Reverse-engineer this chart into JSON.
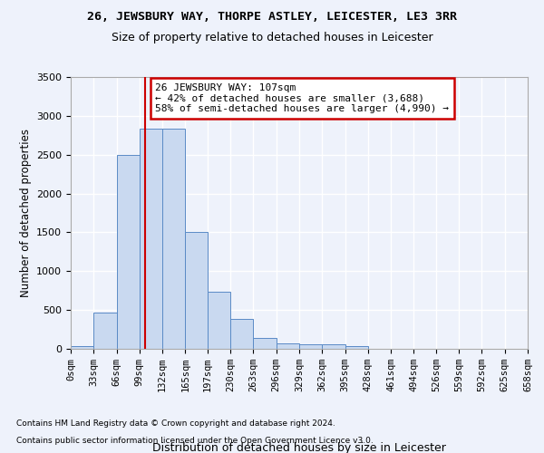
{
  "title1": "26, JEWSBURY WAY, THORPE ASTLEY, LEICESTER, LE3 3RR",
  "title2": "Size of property relative to detached houses in Leicester",
  "xlabel": "Distribution of detached houses by size in Leicester",
  "ylabel": "Number of detached properties",
  "bin_labels": [
    "0sqm",
    "33sqm",
    "66sqm",
    "99sqm",
    "132sqm",
    "165sqm",
    "197sqm",
    "230sqm",
    "263sqm",
    "296sqm",
    "329sqm",
    "362sqm",
    "395sqm",
    "428sqm",
    "461sqm",
    "494sqm",
    "526sqm",
    "559sqm",
    "592sqm",
    "625sqm",
    "658sqm"
  ],
  "bin_edges": [
    0,
    33,
    66,
    99,
    132,
    165,
    197,
    230,
    263,
    296,
    329,
    362,
    395,
    428,
    461,
    494,
    526,
    559,
    592,
    625,
    658
  ],
  "bar_values": [
    30,
    470,
    2500,
    2830,
    2830,
    1510,
    740,
    390,
    145,
    75,
    55,
    55,
    30,
    0,
    0,
    0,
    0,
    0,
    0,
    0
  ],
  "bar_color": "#c9d9f0",
  "bar_edge_color": "#5a8ac6",
  "vline_x": 107,
  "vline_color": "#cc0000",
  "annotation_text": "26 JEWSBURY WAY: 107sqm\n← 42% of detached houses are smaller (3,688)\n58% of semi-detached houses are larger (4,990) →",
  "annotation_box_color": "#cc0000",
  "ylim": [
    0,
    3500
  ],
  "yticks": [
    0,
    500,
    1000,
    1500,
    2000,
    2500,
    3000,
    3500
  ],
  "background_color": "#eef2fb",
  "grid_color": "#ffffff",
  "footer1": "Contains HM Land Registry data © Crown copyright and database right 2024.",
  "footer2": "Contains public sector information licensed under the Open Government Licence v3.0."
}
